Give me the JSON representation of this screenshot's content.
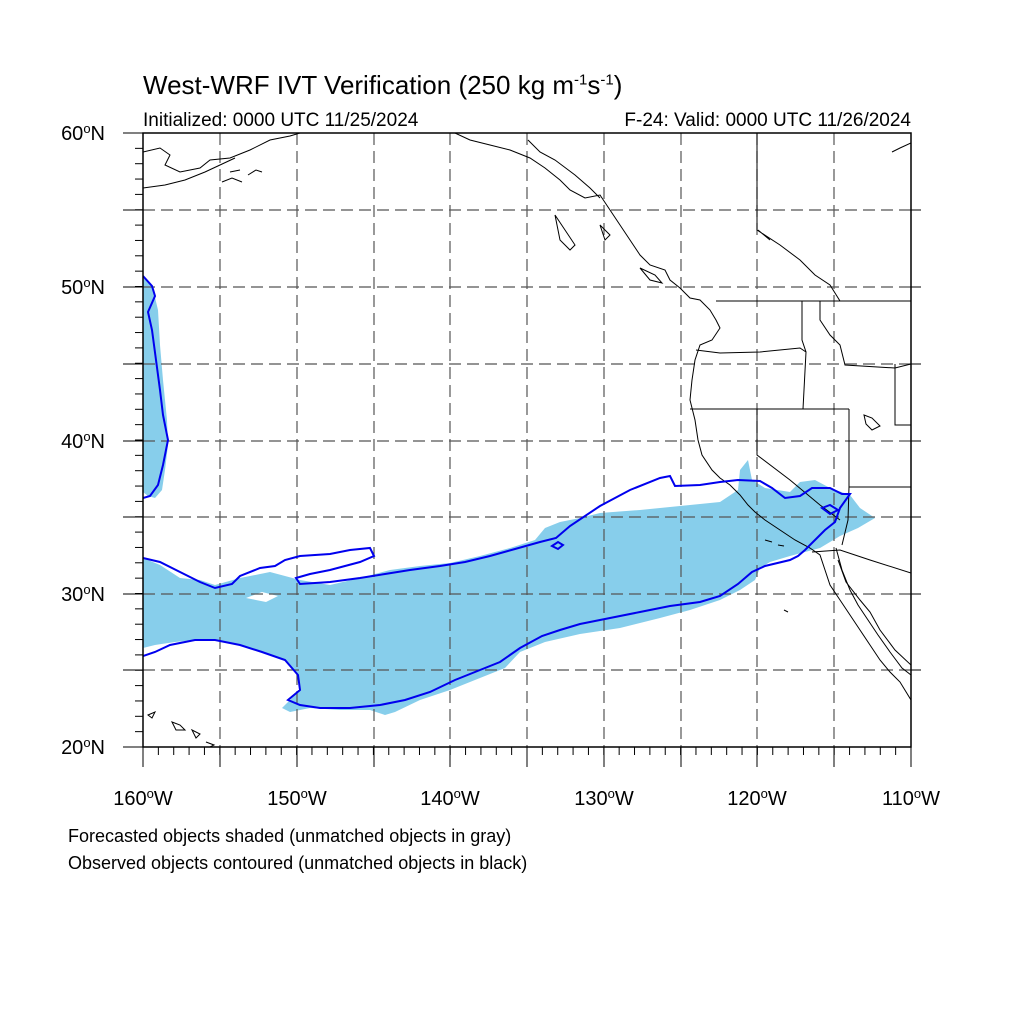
{
  "title": {
    "main": "West-WRF IVT Verification (250 kg m",
    "exp1": "-1",
    "mid": "s",
    "exp2": "-1",
    "end": ")"
  },
  "subtitle": {
    "initialized": "Initialized: 0000 UTC 11/25/2024",
    "valid": "F-24: Valid: 0000 UTC 11/26/2024"
  },
  "axes": {
    "lat_labels": [
      {
        "value": "60",
        "hemi": "N"
      },
      {
        "value": "50",
        "hemi": "N"
      },
      {
        "value": "40",
        "hemi": "N"
      },
      {
        "value": "30",
        "hemi": "N"
      },
      {
        "value": "20",
        "hemi": "N"
      }
    ],
    "lon_labels": [
      {
        "value": "160",
        "hemi": "W"
      },
      {
        "value": "150",
        "hemi": "W"
      },
      {
        "value": "140",
        "hemi": "W"
      },
      {
        "value": "130",
        "hemi": "W"
      },
      {
        "value": "120",
        "hemi": "W"
      },
      {
        "value": "110",
        "hemi": "W"
      }
    ],
    "lat_range": [
      20,
      60
    ],
    "lon_range": [
      -160,
      -110
    ],
    "grid": "dashed every 5 degrees"
  },
  "legend": {
    "forecast_note": "Forecasted objects shaded (unmatched objects in gray)",
    "observed_note": "Observed objects contoured (unmatched objects in black)"
  },
  "colors": {
    "forecast_fill": "#87ceeb",
    "observed_contour": "#0000ee",
    "coastline": "#000000",
    "grid": "#555555"
  }
}
